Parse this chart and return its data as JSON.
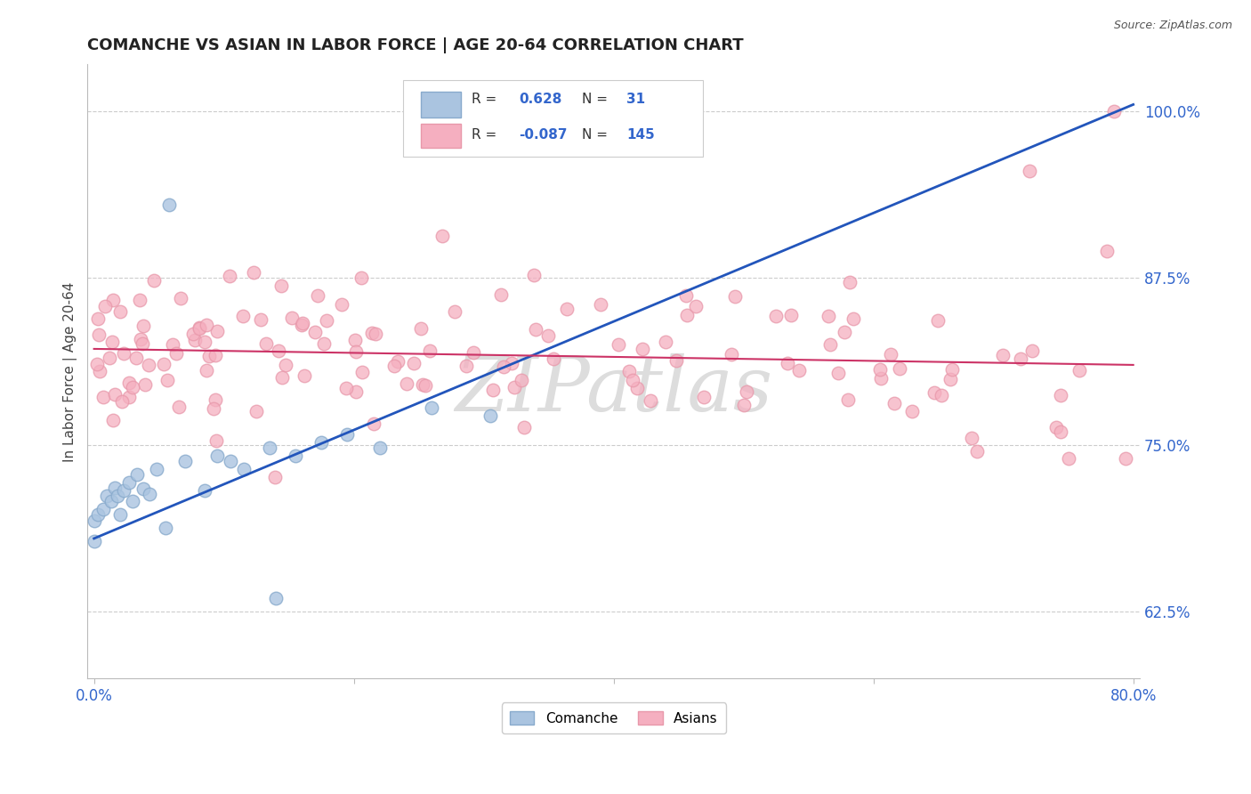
{
  "title": "COMANCHE VS ASIAN IN LABOR FORCE | AGE 20-64 CORRELATION CHART",
  "source": "Source: ZipAtlas.com",
  "ylabel": "In Labor Force | Age 20-64",
  "ytick_labels": [
    "62.5%",
    "75.0%",
    "87.5%",
    "100.0%"
  ],
  "ytick_values": [
    0.625,
    0.75,
    0.875,
    1.0
  ],
  "xlim": [
    -0.005,
    0.805
  ],
  "ylim": [
    0.575,
    1.035
  ],
  "legend_blue_r": "0.628",
  "legend_blue_n": "31",
  "legend_pink_r": "-0.087",
  "legend_pink_n": "145",
  "legend_label_blue": "Comanche",
  "legend_label_pink": "Asians",
  "blue_fill": "#aac4e0",
  "pink_fill": "#f5afc0",
  "blue_edge": "#88aacc",
  "pink_edge": "#e898aa",
  "blue_line": "#2255bb",
  "pink_line": "#cc3366",
  "blue_reg": [
    0.0,
    0.68,
    0.8,
    1.005
  ],
  "pink_reg": [
    0.0,
    0.822,
    0.8,
    0.81
  ],
  "grid_color": "#cccccc",
  "title_color": "#222222",
  "source_color": "#555555",
  "tick_color": "#3366cc",
  "ylabel_color": "#444444",
  "watermark_color": "#dddddd",
  "scatter_size": 110
}
